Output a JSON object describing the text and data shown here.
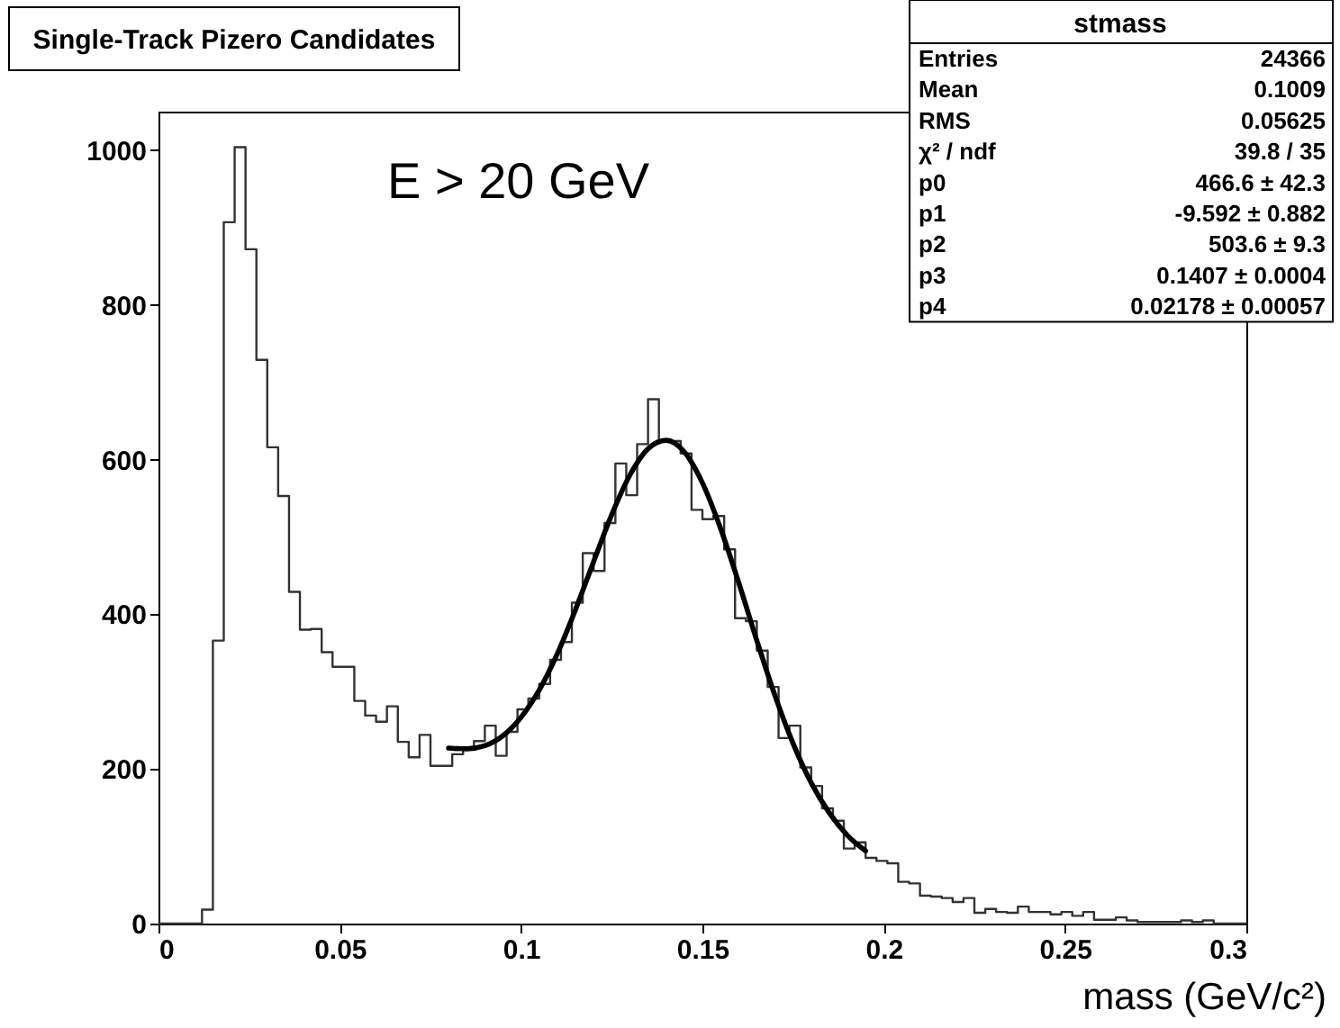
{
  "chart_data": {
    "type": "histogram",
    "title": "Single-Track Pizero Candidates",
    "xlabel": "mass (GeV/c²)",
    "xlim": [
      0,
      0.3
    ],
    "ylim": [
      0,
      1050
    ],
    "xticks": [
      0,
      0.05,
      0.1,
      0.15,
      0.2,
      0.25,
      0.3
    ],
    "yticks": [
      0,
      200,
      400,
      600,
      800,
      1000
    ],
    "color": "#333333",
    "bins": [
      0,
      0.003,
      0.006,
      0.009,
      0.012,
      0.015,
      0.018,
      0.021,
      0.024,
      0.027,
      0.03,
      0.033,
      0.036,
      0.039,
      0.042,
      0.045,
      0.048,
      0.051,
      0.054,
      0.057,
      0.06,
      0.063,
      0.066,
      0.069,
      0.072,
      0.075,
      0.078,
      0.081,
      0.084,
      0.087,
      0.09,
      0.093,
      0.096,
      0.099,
      0.102,
      0.105,
      0.108,
      0.111,
      0.114,
      0.117,
      0.12,
      0.123,
      0.126,
      0.129,
      0.132,
      0.135,
      0.138,
      0.141,
      0.144,
      0.147,
      0.15,
      0.153,
      0.156,
      0.159,
      0.162,
      0.165,
      0.168,
      0.171,
      0.174,
      0.177,
      0.18,
      0.183,
      0.186,
      0.189,
      0.192,
      0.195,
      0.198,
      0.201,
      0.204,
      0.207,
      0.21,
      0.213,
      0.216,
      0.219,
      0.222,
      0.225,
      0.228,
      0.231,
      0.234,
      0.237,
      0.24,
      0.243,
      0.246,
      0.249,
      0.252,
      0.255,
      0.258,
      0.261,
      0.264,
      0.267,
      0.27,
      0.273,
      0.276,
      0.279,
      0.282,
      0.285,
      0.288,
      0.291,
      0.294,
      0.297,
      0.3
    ],
    "values": [
      0,
      0,
      0,
      0,
      18,
      366,
      907,
      1004,
      872,
      729,
      616,
      553,
      429,
      380,
      381,
      351,
      332,
      332,
      288,
      269,
      261,
      281,
      235,
      215,
      244,
      204,
      204,
      219,
      225,
      236,
      256,
      217,
      248,
      277,
      291,
      310,
      341,
      364,
      415,
      479,
      456,
      518,
      595,
      554,
      620,
      678,
      624,
      624,
      608,
      535,
      523,
      527,
      484,
      395,
      391,
      353,
      306,
      240,
      256,
      202,
      178,
      149,
      133,
      97,
      105,
      85,
      81,
      78,
      54,
      52,
      36,
      35,
      33,
      28,
      33,
      14,
      19,
      15,
      14,
      22,
      15,
      15,
      12,
      15,
      10,
      15,
      5,
      5,
      8,
      4,
      2,
      2,
      2,
      2,
      4,
      2,
      4,
      0,
      0,
      0
    ],
    "series": [
      {
        "type": "line",
        "color": "#000000",
        "x": [
          0.08,
          0.085,
          0.09,
          0.095,
          0.1,
          0.105,
          0.11,
          0.115,
          0.12,
          0.125,
          0.13,
          0.135,
          0.14,
          0.145,
          0.15,
          0.155,
          0.16,
          0.165,
          0.17,
          0.175,
          0.18,
          0.185,
          0.19,
          0.195
        ],
        "values": [
          227,
          226,
          230,
          243,
          267,
          302,
          349,
          406,
          468,
          529,
          580,
          614,
          625,
          610,
          570,
          511,
          441,
          366,
          295,
          233,
          182,
          143,
          114,
          94
        ]
      }
    ],
    "annotations": [
      "E > 20 GeV",
      "stmass",
      "Entries",
      "24366",
      "Mean",
      "0.1009",
      "RMS",
      "0.05625",
      "χ² / ndf",
      "39.8 / 35",
      "p0",
      "466.6 ± 42.3",
      "p1",
      "-9.592 ± 0.882",
      "p2",
      "503.6 ± 9.3",
      "p3",
      "0.1407 ± 0.0004",
      "p4",
      "0.02178 ± 0.00057"
    ]
  }
}
